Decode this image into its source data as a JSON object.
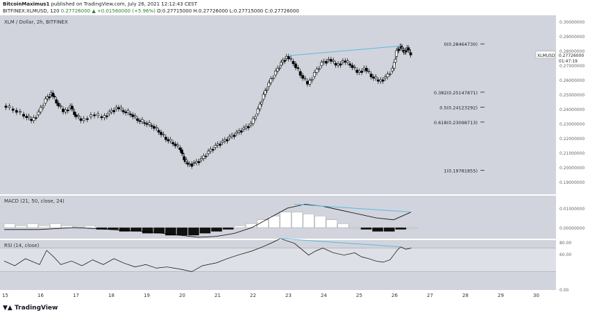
{
  "header": {
    "author": "BitcoinMaximus1",
    "published": "published on TradingView.com, July 26, 2021 12:12:43 CEST",
    "symbol_line": "BITFINEX:XLMUSD, 120",
    "change": "0.27726000 ▲ +0.01560000 (+5.96%)",
    "ohlc": "O:0.27715000 H:0.27726000 L:0.27715000 C:0.27726000"
  },
  "brand": "TradingView",
  "colors": {
    "panel_bg": "#d1d4dc",
    "axis_bg": "#ffffff",
    "trendline": "#5fb7e0",
    "candle": "#000000"
  },
  "chart_data": [
    {
      "type": "candlestick",
      "title": "XLM / Dollar, 2h, BITFINEX",
      "price_label": "XLMUSD",
      "last_price": "0.27726000",
      "countdown": "01:47:19",
      "y_ticks": [
        "0.30000000",
        "0.29000000",
        "0.28000000",
        "0.27000000",
        "0.26000000",
        "0.25000000",
        "0.24000000",
        "0.23000000",
        "0.22000000",
        "0.21000000",
        "0.20000000",
        "0.19000000"
      ],
      "x_ticks": [
        "15",
        "16",
        "17",
        "18",
        "19",
        "20",
        "21",
        "22",
        "23",
        "24",
        "25",
        "26",
        "27",
        "28",
        "29",
        "30"
      ],
      "fib_levels": [
        {
          "label": "0(0.28464730)",
          "value": 0.2846473
        },
        {
          "label": "0.382(0.25147871)",
          "value": 0.25147871
        },
        {
          "label": "0.5(0.24123292)",
          "value": 0.24123292
        },
        {
          "label": "0.618(0.23098713)",
          "value": 0.23098713
        },
        {
          "label": "1(0.19781855)",
          "value": 0.19781855
        }
      ],
      "close_path": [
        [
          15.0,
          0.242
        ],
        [
          15.3,
          0.239
        ],
        [
          15.6,
          0.235
        ],
        [
          15.8,
          0.232
        ],
        [
          16.0,
          0.238
        ],
        [
          16.2,
          0.247
        ],
        [
          16.35,
          0.251
        ],
        [
          16.5,
          0.244
        ],
        [
          16.7,
          0.238
        ],
        [
          16.9,
          0.242
        ],
        [
          17.0,
          0.236
        ],
        [
          17.2,
          0.232
        ],
        [
          17.5,
          0.236
        ],
        [
          17.8,
          0.234
        ],
        [
          18.0,
          0.238
        ],
        [
          18.2,
          0.241
        ],
        [
          18.4,
          0.238
        ],
        [
          18.6,
          0.236
        ],
        [
          18.8,
          0.232
        ],
        [
          19.0,
          0.23
        ],
        [
          19.2,
          0.228
        ],
        [
          19.4,
          0.224
        ],
        [
          19.6,
          0.219
        ],
        [
          19.8,
          0.216
        ],
        [
          20.0,
          0.212
        ],
        [
          20.1,
          0.205
        ],
        [
          20.2,
          0.202
        ],
        [
          20.4,
          0.203
        ],
        [
          20.6,
          0.206
        ],
        [
          20.8,
          0.211
        ],
        [
          21.0,
          0.215
        ],
        [
          21.2,
          0.218
        ],
        [
          21.4,
          0.221
        ],
        [
          21.6,
          0.224
        ],
        [
          21.8,
          0.227
        ],
        [
          22.0,
          0.23
        ],
        [
          22.2,
          0.24
        ],
        [
          22.35,
          0.25
        ],
        [
          22.5,
          0.258
        ],
        [
          22.7,
          0.266
        ],
        [
          22.85,
          0.272
        ],
        [
          23.0,
          0.276
        ],
        [
          23.2,
          0.271
        ],
        [
          23.4,
          0.263
        ],
        [
          23.6,
          0.257
        ],
        [
          23.8,
          0.265
        ],
        [
          24.0,
          0.272
        ],
        [
          24.2,
          0.274
        ],
        [
          24.4,
          0.27
        ],
        [
          24.6,
          0.273
        ],
        [
          24.8,
          0.27
        ],
        [
          25.0,
          0.265
        ],
        [
          25.2,
          0.268
        ],
        [
          25.4,
          0.262
        ],
        [
          25.6,
          0.259
        ],
        [
          25.8,
          0.262
        ],
        [
          26.0,
          0.268
        ],
        [
          26.1,
          0.28
        ],
        [
          26.2,
          0.283
        ],
        [
          26.3,
          0.279
        ],
        [
          26.4,
          0.282
        ],
        [
          26.5,
          0.277
        ]
      ]
    },
    {
      "type": "line",
      "title": "MACD (21, 50, close, 24)",
      "y_ticks": [
        "0.01000000",
        "0.00000000"
      ],
      "macd_path": [
        [
          15,
          -0.001
        ],
        [
          16,
          -0.001
        ],
        [
          17,
          0.0
        ],
        [
          17.5,
          -0.0005
        ],
        [
          18,
          -0.001
        ],
        [
          19,
          -0.002
        ],
        [
          20,
          -0.004
        ],
        [
          20.5,
          -0.005
        ],
        [
          21,
          -0.0045
        ],
        [
          21.5,
          -0.003
        ],
        [
          22,
          0.0
        ],
        [
          22.5,
          0.005
        ],
        [
          23,
          0.01
        ],
        [
          23.5,
          0.012
        ],
        [
          24,
          0.011
        ],
        [
          24.5,
          0.009
        ],
        [
          25,
          0.007
        ],
        [
          25.5,
          0.005
        ],
        [
          26,
          0.004
        ],
        [
          26.5,
          0.008
        ]
      ],
      "histogram": [
        0.002,
        0.001,
        0.002,
        0.001,
        0.002,
        0.001,
        0.0,
        0.001,
        -0.001,
        -0.001,
        -0.002,
        -0.002,
        -0.003,
        -0.003,
        -0.004,
        -0.004,
        -0.004,
        -0.003,
        -0.002,
        -0.001,
        0.001,
        0.002,
        0.004,
        0.006,
        0.008,
        0.008,
        0.007,
        0.006,
        0.004,
        0.002,
        0.0,
        -0.001,
        -0.002,
        -0.002,
        -0.001,
        0.0
      ]
    },
    {
      "type": "line",
      "title": "RSI (14, close)",
      "y_ticks": [
        "80.00",
        "60.00",
        "0.00"
      ],
      "rsi_path": [
        [
          15,
          48
        ],
        [
          15.3,
          40
        ],
        [
          15.6,
          52
        ],
        [
          16,
          42
        ],
        [
          16.2,
          66
        ],
        [
          16.4,
          55
        ],
        [
          16.6,
          42
        ],
        [
          16.9,
          48
        ],
        [
          17.2,
          40
        ],
        [
          17.5,
          50
        ],
        [
          17.8,
          42
        ],
        [
          18.1,
          52
        ],
        [
          18.4,
          44
        ],
        [
          18.7,
          38
        ],
        [
          19.0,
          42
        ],
        [
          19.3,
          36
        ],
        [
          19.6,
          38
        ],
        [
          20.0,
          34
        ],
        [
          20.3,
          30
        ],
        [
          20.6,
          40
        ],
        [
          21.0,
          45
        ],
        [
          21.3,
          52
        ],
        [
          21.6,
          58
        ],
        [
          22.0,
          65
        ],
        [
          22.3,
          72
        ],
        [
          22.6,
          80
        ],
        [
          22.8,
          86
        ],
        [
          23.0,
          82
        ],
        [
          23.2,
          78
        ],
        [
          23.4,
          68
        ],
        [
          23.6,
          58
        ],
        [
          23.8,
          65
        ],
        [
          24.0,
          70
        ],
        [
          24.3,
          62
        ],
        [
          24.6,
          58
        ],
        [
          24.9,
          62
        ],
        [
          25.1,
          55
        ],
        [
          25.3,
          52
        ],
        [
          25.5,
          48
        ],
        [
          25.7,
          46
        ],
        [
          25.9,
          50
        ],
        [
          26.0,
          58
        ],
        [
          26.1,
          66
        ],
        [
          26.2,
          72
        ],
        [
          26.35,
          68
        ],
        [
          26.5,
          70
        ]
      ]
    }
  ]
}
